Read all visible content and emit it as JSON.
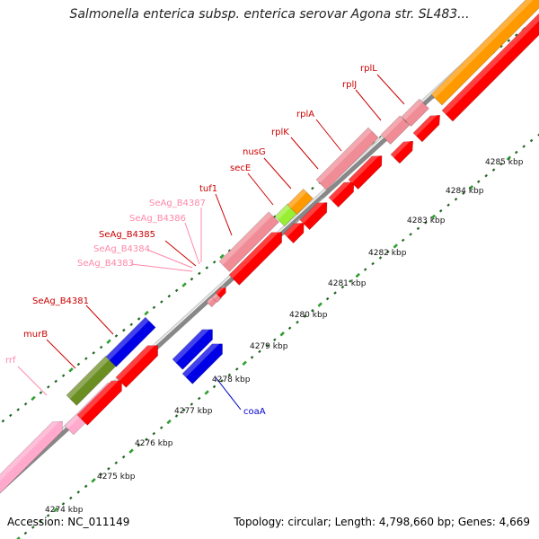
{
  "title": "Salmonella enterica subsp. enterica serovar Agona str. SL483...",
  "footer": {
    "accession": "Accession: NC_011149",
    "summary": "Topology: circular; Length: 4,798,660 bp; Genes: 4,669"
  },
  "colors": {
    "red_gene": "#ff0000",
    "pink_gene": "#f08c96",
    "blue_gene": "#0000e6",
    "orange_gene": "#ff9900",
    "olive_gene": "#6b8e23",
    "lime_gene": "#99ee33",
    "light_pink_gene": "#ffaacc",
    "tick_green": "#2f9e2f",
    "tick_dark": "#226622",
    "backbone": "#888888",
    "label_red": "#cc0000",
    "label_pink": "#ff88aa",
    "label_blue": "#0000cc"
  },
  "scale": {
    "unit": "kbp",
    "ticks": [
      {
        "label": "4274 kbp"
      },
      {
        "label": "4275 kbp"
      },
      {
        "label": "4276 kbp"
      },
      {
        "label": "4277 kbp"
      },
      {
        "label": "4278 kbp"
      },
      {
        "label": "4279 kbp"
      },
      {
        "label": "4280 kbp"
      },
      {
        "label": "4281 kbp"
      },
      {
        "label": "4282 kbp"
      },
      {
        "label": "4283 kbp"
      },
      {
        "label": "4284 kbp"
      },
      {
        "label": "4285 kbp"
      }
    ]
  },
  "gene_labels": [
    {
      "name": "rrf",
      "color": "label_pink"
    },
    {
      "name": "murB",
      "color": "label_red"
    },
    {
      "name": "SeAg_B4381",
      "color": "label_red"
    },
    {
      "name": "SeAg_B4383",
      "color": "label_pink"
    },
    {
      "name": "SeAg_B4384",
      "color": "label_pink"
    },
    {
      "name": "SeAg_B4385",
      "color": "label_red"
    },
    {
      "name": "SeAg_B4386",
      "color": "label_pink"
    },
    {
      "name": "SeAg_B4387",
      "color": "label_pink"
    },
    {
      "name": "tuf1",
      "color": "label_red"
    },
    {
      "name": "secE",
      "color": "label_red"
    },
    {
      "name": "nusG",
      "color": "label_red"
    },
    {
      "name": "rplK",
      "color": "label_red"
    },
    {
      "name": "rplA",
      "color": "label_red"
    },
    {
      "name": "rplJ",
      "color": "label_red"
    },
    {
      "name": "rplL",
      "color": "label_red"
    },
    {
      "name": "coaA",
      "color": "label_blue"
    }
  ]
}
